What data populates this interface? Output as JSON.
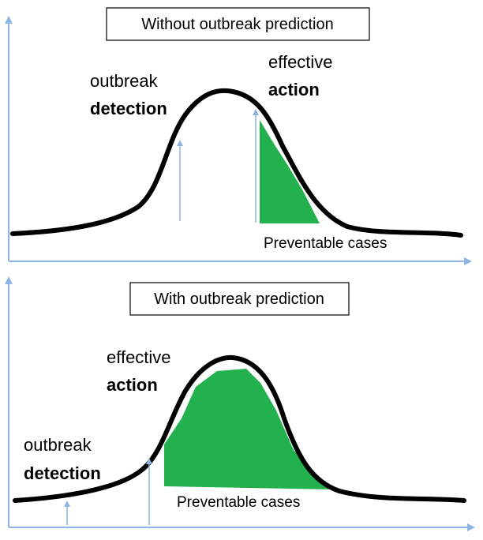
{
  "panels": [
    {
      "title": "Without outbreak prediction",
      "detection_line1": "outbreak",
      "detection_line2": "detection",
      "action_line1": "effective",
      "action_line2": "action",
      "region_caption": "Preventable cases"
    },
    {
      "title": "With outbreak prediction",
      "detection_line1": "outbreak",
      "detection_line2": "detection",
      "action_line1": "effective",
      "action_line2": "action",
      "region_caption": "Preventable cases"
    }
  ],
  "colors": {
    "axis": "#8EB4E3",
    "curve": "#000000",
    "preventable_fill": "#22B14C",
    "title_border": "#000000"
  }
}
